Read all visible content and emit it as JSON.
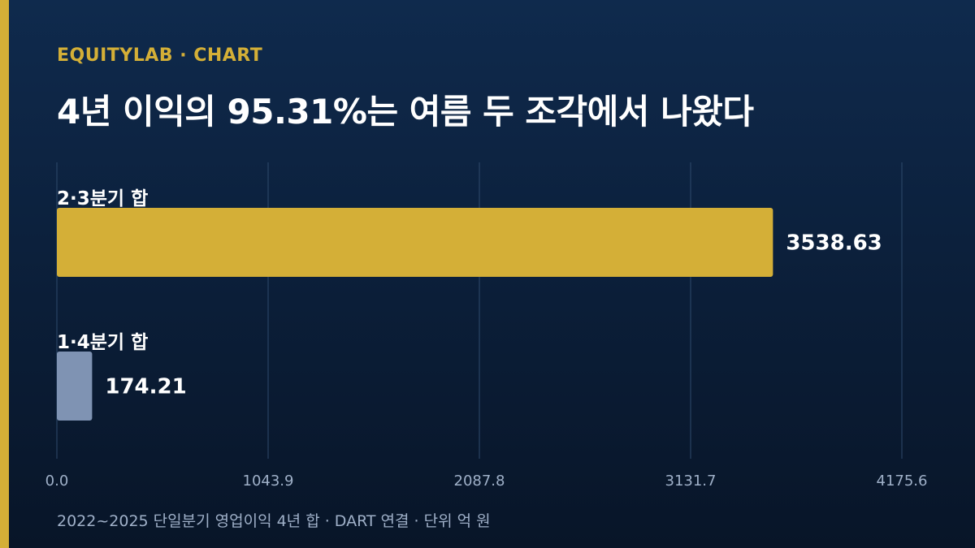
{
  "header": {
    "brand": "EQUITYLAB · CHART",
    "title": "4년 이익의 95.31%는 여름 두 조각에서 나왔다"
  },
  "footnote": "2022~2025 단일분기 영업이익 4년 합 · DART 연결 · 단위 억 원",
  "colors": {
    "accent": "#d4af37",
    "bar_summer": "#d4af37",
    "bar_other": "#7f93b3",
    "grid": "#2e4a6c",
    "tick": "#9fb0c8"
  },
  "chart_data": {
    "type": "bar",
    "orientation": "horizontal",
    "categories": [
      "2·3분기 합",
      "1·4분기 합"
    ],
    "values": [
      3538.63,
      174.21
    ],
    "value_labels": [
      "3538.63",
      "174.21"
    ],
    "xlim": [
      0,
      4175.6
    ],
    "xticks": [
      "0.0",
      "1043.9",
      "2087.8",
      "3131.7",
      "4175.6"
    ],
    "xtick_values": [
      0,
      1043.9,
      2087.8,
      3131.7,
      4175.6
    ],
    "grid": true,
    "legend": "none",
    "title": "4년 이익의 95.31%는 여름 두 조각에서 나왔다",
    "xlabel": "",
    "ylabel": ""
  }
}
